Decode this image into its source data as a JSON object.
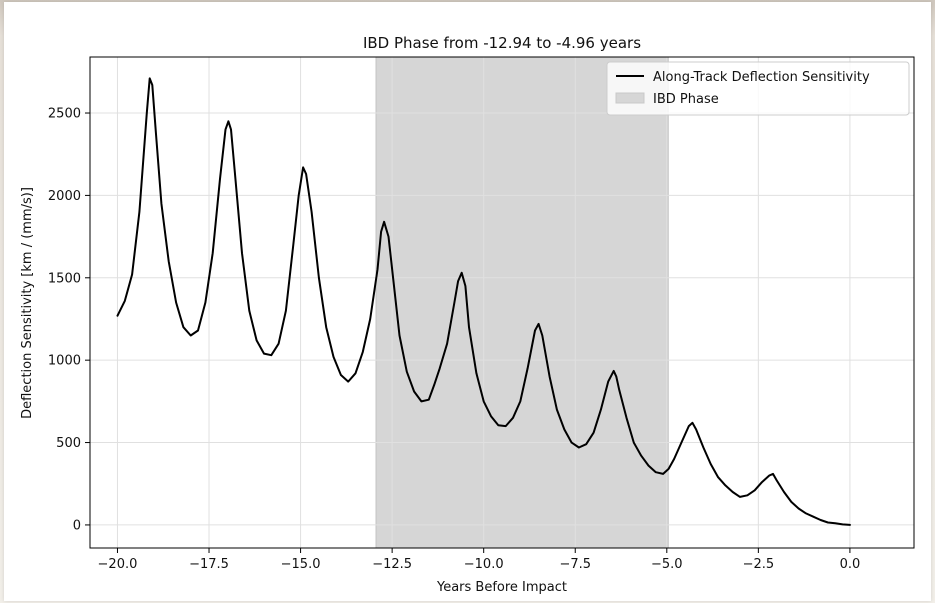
{
  "chart_data": {
    "type": "line",
    "title": "IBD Phase from -12.94 to -4.96 years",
    "xlabel": "Years Before Impact",
    "ylabel": "Deflection Sensitivity [km / (mm/s)]",
    "xlim": [
      -20.75,
      1.75
    ],
    "ylim": [
      -140,
      2840
    ],
    "xticks": [
      -20.0,
      -17.5,
      -15.0,
      -12.5,
      -10.0,
      -7.5,
      -5.0,
      -2.5,
      0.0
    ],
    "xtick_labels": [
      "−20.0",
      "−17.5",
      "−15.0",
      "−12.5",
      "−10.0",
      "−7.5",
      "−5.0",
      "−2.5",
      "0.0"
    ],
    "yticks": [
      0,
      500,
      1000,
      1500,
      2000,
      2500
    ],
    "ytick_labels": [
      "0",
      "500",
      "1000",
      "1500",
      "2000",
      "2500"
    ],
    "grid": true,
    "legend_position": "top-right",
    "ibd_phase": {
      "name": "IBD Phase",
      "x_start": -12.94,
      "x_end": -4.96,
      "color": "#d6d6d6"
    },
    "series": [
      {
        "name": "Along-Track Deflection Sensitivity",
        "color": "#000000",
        "x": [
          -20.0,
          -19.8,
          -19.6,
          -19.4,
          -19.3,
          -19.2,
          -19.12,
          -19.05,
          -18.95,
          -18.8,
          -18.6,
          -18.4,
          -18.2,
          -18.0,
          -17.8,
          -17.6,
          -17.4,
          -17.2,
          -17.05,
          -16.97,
          -16.9,
          -16.8,
          -16.6,
          -16.4,
          -16.2,
          -16.0,
          -15.8,
          -15.6,
          -15.4,
          -15.2,
          -15.05,
          -14.93,
          -14.85,
          -14.7,
          -14.5,
          -14.3,
          -14.1,
          -13.9,
          -13.7,
          -13.5,
          -13.3,
          -13.1,
          -12.9,
          -12.8,
          -12.72,
          -12.6,
          -12.45,
          -12.3,
          -12.1,
          -11.9,
          -11.7,
          -11.5,
          -11.35,
          -11.2,
          -11.0,
          -10.8,
          -10.7,
          -10.6,
          -10.5,
          -10.4,
          -10.2,
          -10.0,
          -9.8,
          -9.6,
          -9.4,
          -9.2,
          -9.0,
          -8.8,
          -8.6,
          -8.5,
          -8.4,
          -8.2,
          -8.0,
          -7.8,
          -7.6,
          -7.4,
          -7.2,
          -7.0,
          -6.8,
          -6.6,
          -6.45,
          -6.38,
          -6.3,
          -6.1,
          -5.9,
          -5.7,
          -5.5,
          -5.3,
          -5.1,
          -4.95,
          -4.8,
          -4.6,
          -4.4,
          -4.3,
          -4.2,
          -4.0,
          -3.8,
          -3.6,
          -3.4,
          -3.2,
          -3.0,
          -2.8,
          -2.6,
          -2.4,
          -2.2,
          -2.1,
          -2.0,
          -1.8,
          -1.6,
          -1.4,
          -1.2,
          -1.0,
          -0.8,
          -0.6,
          -0.4,
          -0.2,
          0.0
        ],
        "y": [
          1270,
          1360,
          1520,
          1900,
          2200,
          2500,
          2710,
          2670,
          2380,
          1950,
          1600,
          1350,
          1200,
          1150,
          1180,
          1350,
          1650,
          2100,
          2400,
          2450,
          2400,
          2150,
          1650,
          1300,
          1120,
          1040,
          1030,
          1100,
          1300,
          1700,
          2000,
          2170,
          2130,
          1900,
          1500,
          1200,
          1020,
          910,
          870,
          920,
          1050,
          1250,
          1550,
          1780,
          1840,
          1750,
          1450,
          1150,
          930,
          810,
          750,
          760,
          850,
          950,
          1100,
          1350,
          1480,
          1530,
          1450,
          1200,
          920,
          750,
          660,
          605,
          600,
          650,
          750,
          950,
          1180,
          1220,
          1150,
          900,
          700,
          580,
          500,
          470,
          490,
          560,
          700,
          870,
          935,
          900,
          820,
          650,
          500,
          420,
          360,
          320,
          310,
          340,
          400,
          500,
          600,
          620,
          580,
          470,
          370,
          290,
          240,
          200,
          170,
          180,
          210,
          260,
          300,
          310,
          270,
          200,
          140,
          100,
          70,
          50,
          30,
          15,
          10,
          3,
          0
        ]
      }
    ]
  },
  "legend": {
    "line_label": "Along-Track Deflection Sensitivity",
    "patch_label": "IBD Phase"
  },
  "colors": {
    "line": "#000000",
    "ibd_fill": "#d6d6d6",
    "grid": "#e0e0e0",
    "axes": "#000000"
  }
}
